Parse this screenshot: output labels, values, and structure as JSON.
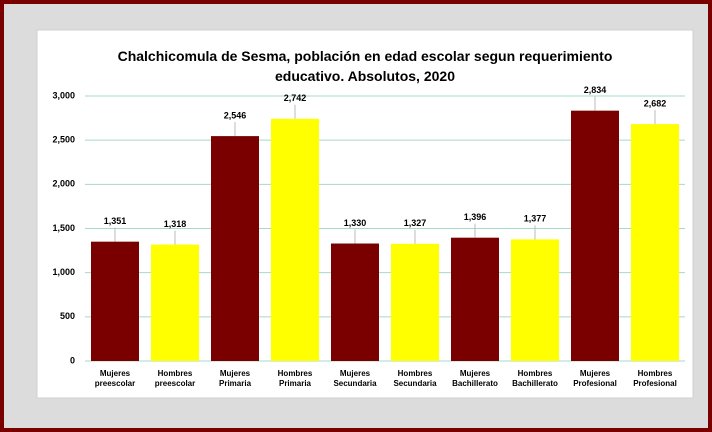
{
  "chart_data": {
    "type": "bar",
    "title": "Chalchicomula de Sesma, población en edad escolar segun requerimiento educativo. Absolutos, 2020",
    "categories": [
      "Mujeres preescolar",
      "Hombres preescolar",
      "Mujeres Primaria",
      "Hombres Primaria",
      "Mujeres Secundaria",
      "Hombres Secundaria",
      "Mujeres Bachillerato",
      "Hombres Bachillerato",
      "Mujeres Profesional",
      "Hombres Profesional"
    ],
    "values": [
      1351,
      1318,
      2546,
      2742,
      1330,
      1327,
      1396,
      1377,
      2834,
      2682
    ],
    "value_labels": [
      "1,351",
      "1,318",
      "2,546",
      "2,742",
      "1,330",
      "1,327",
      "1,396",
      "1,377",
      "2,834",
      "2,682"
    ],
    "colors": [
      "#7a0000",
      "#ffff00",
      "#7a0000",
      "#ffff00",
      "#7a0000",
      "#ffff00",
      "#7a0000",
      "#ffff00",
      "#7a0000",
      "#ffff00"
    ],
    "ylim": [
      0,
      3000
    ],
    "yticks": [
      0,
      500,
      {
        "value": 1000,
        "label": "1,000"
      },
      {
        "value": 1500,
        "label": "1,500"
      },
      {
        "value": 2000,
        "label": "2,000"
      },
      {
        "value": 2500,
        "label": "2,500"
      },
      {
        "value": 3000,
        "label": "3,000"
      }
    ],
    "grid": true
  }
}
